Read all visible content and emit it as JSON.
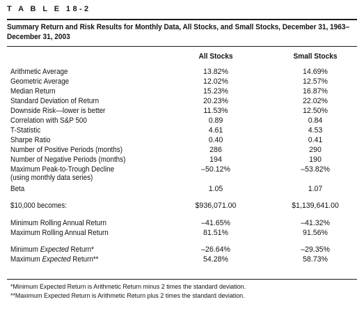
{
  "table_label": "T A B L E   18-2",
  "caption": "Summary Return and Risk Results for Monthly Data, All Stocks, and Small Stocks, December 31, 1963–December 31, 2003",
  "columns": {
    "all_stocks": "All Stocks",
    "small_stocks": "Small Stocks"
  },
  "rows": [
    {
      "label": "Arithmetic Average",
      "all": "13.82%",
      "small": "14.69%"
    },
    {
      "label": "Geometric Average",
      "all": "12.02%",
      "small": "12.57%"
    },
    {
      "label": "Median Return",
      "all": "15.23%",
      "small": "16.87%"
    },
    {
      "label": "Standard Deviation of Return",
      "all": "20.23%",
      "small": "22.02%"
    },
    {
      "label": "Downside Risk—lower is better",
      "all": "11.53%",
      "small": "12.50%"
    },
    {
      "label": "Correlation with S&P 500",
      "all": "0.89",
      "small": "0.84"
    },
    {
      "label": "T-Statistic",
      "all": "4.61",
      "small": "4.53"
    },
    {
      "label": "Sharpe Ratio",
      "all": "0.40",
      "small": "0.41"
    },
    {
      "label": "Number of Positive Periods (months)",
      "all": "286",
      "small": "290"
    },
    {
      "label": "Number of Negative Periods (months)",
      "all": "194",
      "small": "190"
    },
    {
      "label": "Maximum Peak-to-Trough Decline",
      "label2": "(using monthly data series)",
      "all": "–50.12%",
      "small": "–53.82%"
    },
    {
      "label": "Beta",
      "all": "1.05",
      "small": "1.07"
    },
    {
      "label": "$10,000 becomes:",
      "all": "$936,071.00",
      "small": "$1,139,641.00"
    },
    {
      "label": "Minimum Rolling Annual Return",
      "all": "–41.65%",
      "small": "–41.32%"
    },
    {
      "label": "Maximum Rolling Annual Return",
      "all": "81.51%",
      "small": "91.56%"
    },
    {
      "label_prefix": "Minimum ",
      "label_em": "Expected",
      "label_suffix": " Return*",
      "all": "–26.64%",
      "small": "–29.35%"
    },
    {
      "label_prefix": "Maximum ",
      "label_em": "Expected",
      "label_suffix": " Return**",
      "all": "54.28%",
      "small": "58.73%"
    }
  ],
  "footnotes": [
    "*Minimum Expected Return is Arithmetic Return minus 2 times the standard deviation.",
    "**Maximum Expected Return is Arithmetic Return plus 2 times the standard deviation."
  ]
}
